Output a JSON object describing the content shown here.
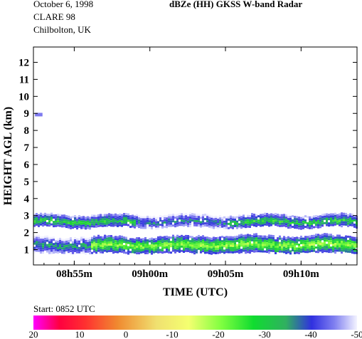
{
  "header": {
    "date": "October  6, 1998",
    "campaign": "CLARE 98",
    "location": "Chilbolton, UK",
    "title": "dBZe (HH)   GKSS  W-band Radar"
  },
  "chart_data": {
    "type": "heatmap",
    "title": "dBZe (HH)   GKSS  W-band Radar",
    "xlabel": "TIME (UTC)",
    "ylabel": "HEIGHT AGL (km)",
    "x_ticks": [
      "08h55m",
      "09h00m",
      "09h05m",
      "09h10m"
    ],
    "x_tick_minutes": [
      895,
      900,
      905,
      910
    ],
    "xlim_minutes": [
      892.3,
      913.7
    ],
    "y_ticks": [
      "1",
      "2",
      "3",
      "4",
      "5",
      "6",
      "7",
      "8",
      "9",
      "10",
      "11",
      "12"
    ],
    "y_tick_values": [
      1,
      2,
      3,
      4,
      5,
      6,
      7,
      8,
      9,
      10,
      11,
      12
    ],
    "ylim": [
      0.1,
      12.9
    ],
    "layers": [
      {
        "t0": 892.3,
        "t1": 913.7,
        "base_km": 2.35,
        "top_km": 3.05,
        "peak_dbz": -25,
        "edge_dbz": -45
      },
      {
        "t0": 892.3,
        "t1": 913.7,
        "base_km": 0.85,
        "top_km": 1.75,
        "peak_dbz": -18,
        "edge_dbz": -42
      }
    ],
    "small_echo": {
      "t0": 892.4,
      "t1": 892.9,
      "height_km": 8.95,
      "dbz": -43
    },
    "colorbar": {
      "labels": [
        "20",
        "10",
        "0",
        "-10",
        "-20",
        "-30",
        "-40",
        "-50"
      ],
      "range_dbz": [
        20,
        -50
      ]
    },
    "start_label": "Start: 0852 UTC"
  }
}
